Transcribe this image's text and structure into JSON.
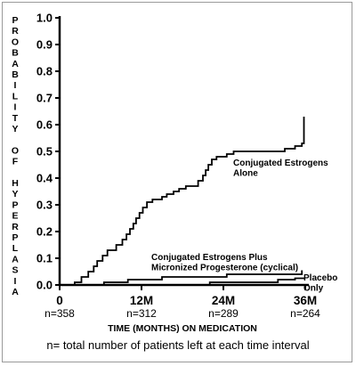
{
  "chart_data": {
    "type": "line",
    "ylabel_letters": [
      "P",
      "R",
      "O",
      "B",
      "A",
      "B",
      "I",
      "L",
      "I",
      "T",
      "Y",
      "O",
      "F",
      "H",
      "Y",
      "P",
      "E",
      "R",
      "P",
      "L",
      "A",
      "S",
      "I",
      "A"
    ],
    "xlabel": "TIME (MONTHS) ON MEDICATION",
    "footnote": "n= total number of patients left at each time interval",
    "ylim": [
      0,
      1.0
    ],
    "y_ticks": [
      "0.0",
      "0.1",
      "0.2",
      "0.3",
      "0.4",
      "0.5",
      "0.6",
      "0.7",
      "0.8",
      "0.9",
      "1.0"
    ],
    "xlim": [
      0,
      36
    ],
    "x_ticks": [
      {
        "month": 0,
        "label": "0",
        "n": "n=358"
      },
      {
        "month": 12,
        "label": "12M",
        "n": "n=312"
      },
      {
        "month": 24,
        "label": "24M",
        "n": "n=289"
      },
      {
        "month": 36,
        "label": "36M",
        "n": "n=264"
      }
    ],
    "series": [
      {
        "name_lines": [
          "Conjugated Estrogens",
          "Alone"
        ],
        "points": [
          [
            0,
            0
          ],
          [
            2.2,
            0
          ],
          [
            2.2,
            0.01
          ],
          [
            3.2,
            0.01
          ],
          [
            3.2,
            0.03
          ],
          [
            4.2,
            0.03
          ],
          [
            4.2,
            0.05
          ],
          [
            5.0,
            0.05
          ],
          [
            5.0,
            0.07
          ],
          [
            5.5,
            0.07
          ],
          [
            5.5,
            0.09
          ],
          [
            6.3,
            0.09
          ],
          [
            6.3,
            0.11
          ],
          [
            7.0,
            0.11
          ],
          [
            7.0,
            0.13
          ],
          [
            8.3,
            0.13
          ],
          [
            8.3,
            0.15
          ],
          [
            9.2,
            0.15
          ],
          [
            9.2,
            0.17
          ],
          [
            9.8,
            0.17
          ],
          [
            9.8,
            0.19
          ],
          [
            10.3,
            0.19
          ],
          [
            10.3,
            0.21
          ],
          [
            10.8,
            0.21
          ],
          [
            10.8,
            0.23
          ],
          [
            11.2,
            0.23
          ],
          [
            11.2,
            0.25
          ],
          [
            11.7,
            0.25
          ],
          [
            11.7,
            0.27
          ],
          [
            12.2,
            0.27
          ],
          [
            12.2,
            0.29
          ],
          [
            12.8,
            0.29
          ],
          [
            12.8,
            0.31
          ],
          [
            13.6,
            0.31
          ],
          [
            13.6,
            0.32
          ],
          [
            15.0,
            0.32
          ],
          [
            15.0,
            0.33
          ],
          [
            15.7,
            0.33
          ],
          [
            15.7,
            0.34
          ],
          [
            16.7,
            0.34
          ],
          [
            16.7,
            0.35
          ],
          [
            17.5,
            0.35
          ],
          [
            17.5,
            0.36
          ],
          [
            18.5,
            0.36
          ],
          [
            18.5,
            0.37
          ],
          [
            20.3,
            0.37
          ],
          [
            20.3,
            0.39
          ],
          [
            21.0,
            0.39
          ],
          [
            21.0,
            0.41
          ],
          [
            21.4,
            0.41
          ],
          [
            21.4,
            0.43
          ],
          [
            21.8,
            0.43
          ],
          [
            21.8,
            0.45
          ],
          [
            22.3,
            0.45
          ],
          [
            22.3,
            0.47
          ],
          [
            23.0,
            0.47
          ],
          [
            23.0,
            0.48
          ],
          [
            24.5,
            0.48
          ],
          [
            24.5,
            0.49
          ],
          [
            25.5,
            0.49
          ],
          [
            25.5,
            0.5
          ],
          [
            33.0,
            0.5
          ],
          [
            33.0,
            0.51
          ],
          [
            34.5,
            0.51
          ],
          [
            34.5,
            0.52
          ],
          [
            35.5,
            0.52
          ],
          [
            35.5,
            0.53
          ],
          [
            35.8,
            0.53
          ],
          [
            35.8,
            0.63
          ]
        ]
      },
      {
        "name_lines": [
          "Conjugated Estrogens Plus",
          "Micronized Progesterone (cyclical)"
        ],
        "points": [
          [
            0,
            0
          ],
          [
            6.5,
            0
          ],
          [
            6.5,
            0.01
          ],
          [
            10.0,
            0.01
          ],
          [
            10.0,
            0.02
          ],
          [
            15.0,
            0.02
          ],
          [
            15.0,
            0.03
          ],
          [
            24.5,
            0.03
          ],
          [
            24.5,
            0.04
          ],
          [
            35.5,
            0.04
          ],
          [
            35.5,
            0.055
          ]
        ]
      },
      {
        "name_lines": [
          "Placebo",
          "Only"
        ],
        "points": [
          [
            0,
            0
          ],
          [
            22.0,
            0
          ],
          [
            22.0,
            0.01
          ],
          [
            32.0,
            0.01
          ],
          [
            32.0,
            0.02
          ],
          [
            34.5,
            0.02
          ],
          [
            34.5,
            0.025
          ],
          [
            36.0,
            0.025
          ]
        ]
      }
    ]
  }
}
